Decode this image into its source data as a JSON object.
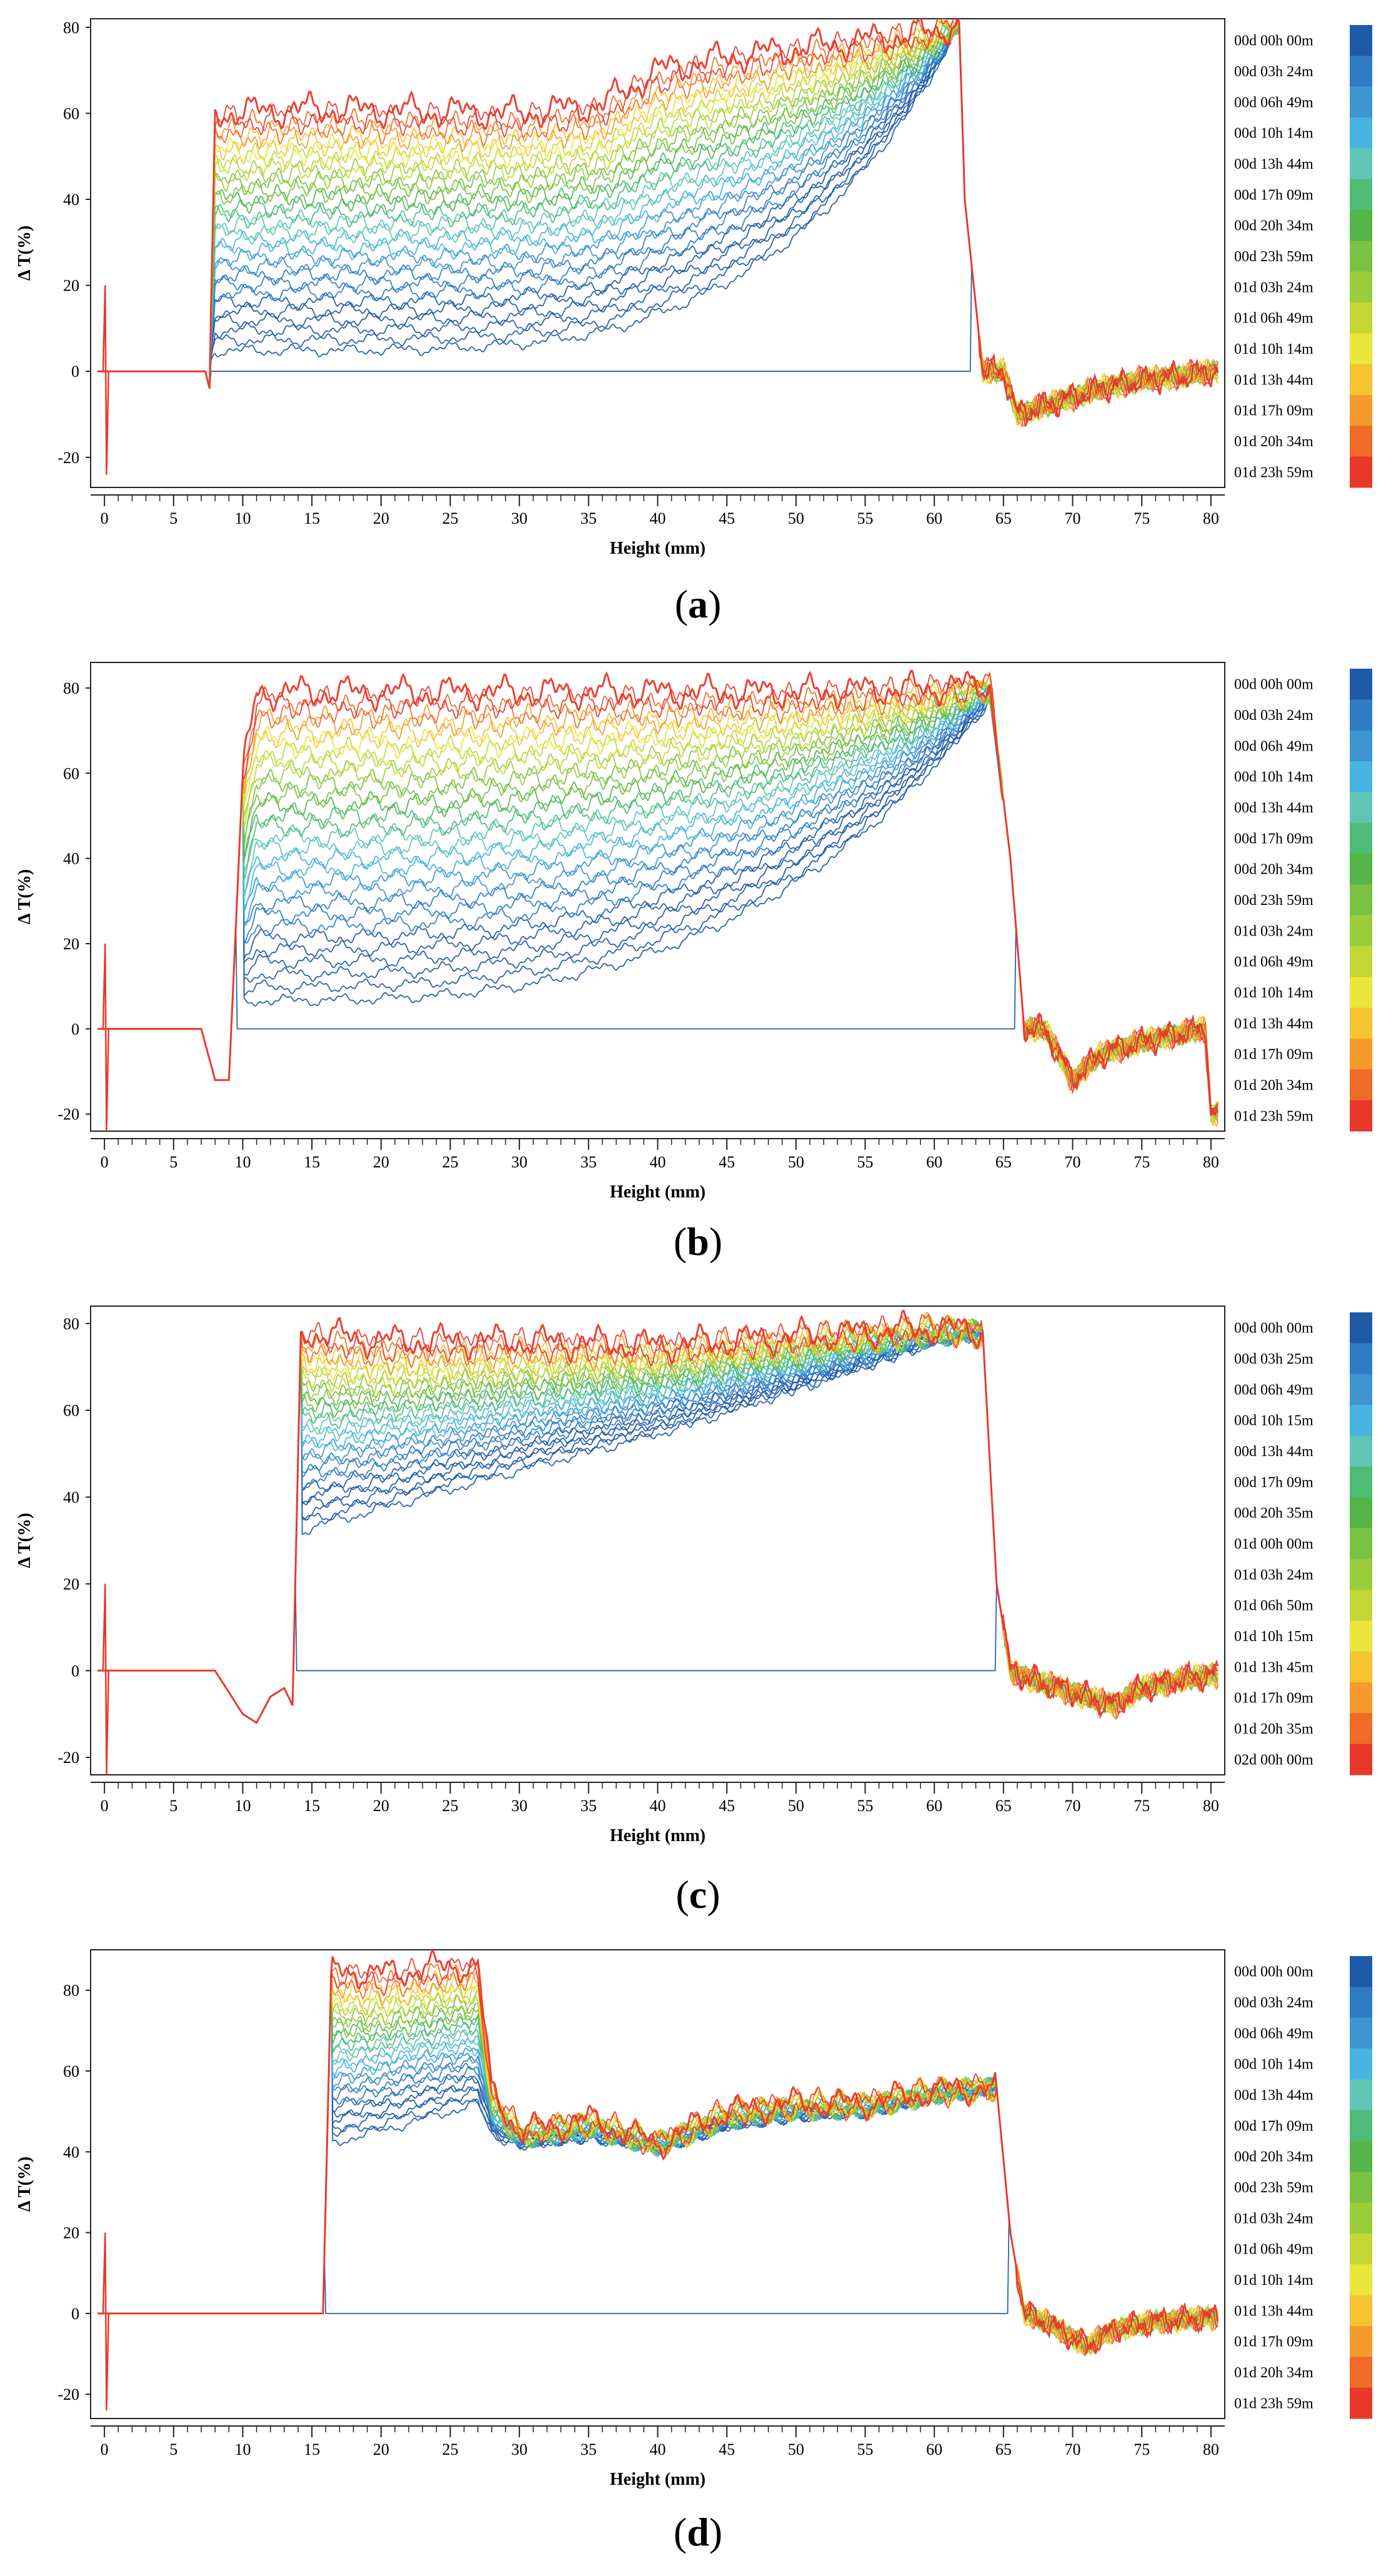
{
  "colors": [
    "#1f5aa8",
    "#2f7cc4",
    "#3d95d2",
    "#47b4e2",
    "#5fc6b6",
    "#4dbd78",
    "#55b548",
    "#7cc242",
    "#9acd3c",
    "#c3d835",
    "#eae63a",
    "#f4c430",
    "#f59a2c",
    "#f06a28",
    "#e8382a"
  ],
  "chart_data": [
    {
      "id": "a",
      "type": "line",
      "panel_label": "a",
      "ylabel": "Δ T(%)",
      "xlabel": "Height (mm)",
      "xlim": [
        -1,
        81
      ],
      "ylim": [
        -27,
        82
      ],
      "xticks": [
        0,
        5,
        10,
        15,
        20,
        25,
        30,
        35,
        40,
        45,
        50,
        55,
        60,
        65,
        70,
        75,
        80
      ],
      "yticks": [
        -20,
        0,
        20,
        40,
        60,
        80
      ],
      "legend": [
        "00d 00h 00m",
        "00d 03h 24m",
        "00d 06h 49m",
        "00d 10h 14m",
        "00d 13h 44m",
        "00d 17h 09m",
        "00d 20h 34m",
        "00d 23h 59m",
        "01d 03h 24m",
        "01d 06h 49m",
        "01d 10h 14m",
        "01d 13h 44m",
        "01d 17h 09m",
        "01d 20h 34m",
        "01d 23h 59m"
      ],
      "curves": 30,
      "profile": {
        "x": [
          -0.5,
          0,
          0.5,
          7.3,
          7.6,
          8,
          15,
          30,
          36,
          40,
          45,
          50,
          55,
          60,
          61.8,
          62.2,
          63.5,
          65,
          66,
          68,
          70,
          72,
          75,
          78,
          80
        ],
        "y": [
          0,
          0,
          0,
          0,
          -4,
          60,
          61,
          60,
          62,
          70,
          73,
          75,
          77,
          79,
          81,
          40,
          0,
          0,
          -10,
          -8,
          -6,
          -4,
          -2,
          -1,
          0
        ]
      },
      "base_rise": {
        "start": 7.6,
        "end": 61.8,
        "min": 2,
        "curve_power": 4
      }
    },
    {
      "id": "b",
      "type": "line",
      "panel_label": "b",
      "ylabel": "Δ T(%)",
      "xlabel": "Height (mm)",
      "xlim": [
        -1,
        81
      ],
      "ylim": [
        -24,
        86
      ],
      "xticks": [
        0,
        5,
        10,
        15,
        20,
        25,
        30,
        35,
        40,
        45,
        50,
        55,
        60,
        65,
        70,
        75,
        80
      ],
      "yticks": [
        -20,
        0,
        20,
        40,
        60,
        80
      ],
      "legend": [
        "00d 00h 00m",
        "00d 03h 24m",
        "00d 06h 49m",
        "00d 10h 14m",
        "00d 13h 44m",
        "00d 17h 09m",
        "00d 20h 34m",
        "00d 23h 59m",
        "01d 03h 24m",
        "01d 06h 49m",
        "01d 10h 14m",
        "01d 13h 44m",
        "01d 17h 09m",
        "01d 20h 34m",
        "01d 23h 59m"
      ],
      "curves": 30,
      "profile": {
        "x": [
          -0.5,
          0,
          0.5,
          7,
          8,
          9,
          10,
          11,
          20,
          30,
          40,
          50,
          60,
          64,
          65.5,
          66.5,
          68,
          70,
          72,
          75,
          78,
          79.6,
          80
        ],
        "y": [
          0,
          0,
          0,
          0,
          -12,
          -12,
          60,
          79,
          79,
          79,
          79,
          79,
          80,
          81,
          40,
          0,
          0,
          -12,
          -6,
          -3,
          -1,
          0,
          -20
        ]
      },
      "base_rise": {
        "start": 10,
        "end": 65,
        "min": 3,
        "curve_power": 3
      }
    },
    {
      "id": "c",
      "type": "line",
      "panel_label": "c",
      "ylabel": "Δ T(%)",
      "xlabel": "Height (mm)",
      "xlim": [
        -1,
        81
      ],
      "ylim": [
        -24,
        84
      ],
      "xticks": [
        0,
        5,
        10,
        15,
        20,
        25,
        30,
        35,
        40,
        45,
        50,
        55,
        60,
        65,
        70,
        75,
        80
      ],
      "yticks": [
        -20,
        0,
        20,
        40,
        60,
        80
      ],
      "legend": [
        "00d 00h 00m",
        "00d 03h 25m",
        "00d 06h 49m",
        "00d 10h 15m",
        "00d 13h 44m",
        "00d 17h 09m",
        "00d 20h 35m",
        "01d 00h 00m",
        "01d 03h 24m",
        "01d 06h 50m",
        "01d 10h 15m",
        "01d 13h 45m",
        "01d 17h 09m",
        "01d 20h 35m",
        "02d 00h 00m"
      ],
      "curves": 30,
      "profile": {
        "x": [
          -0.5,
          0,
          0.5,
          8,
          10,
          11,
          12,
          13,
          13.6,
          14.2,
          20,
          30,
          40,
          50,
          60,
          63.5,
          64.5,
          65.5,
          67,
          70,
          73,
          75,
          78,
          80
        ],
        "y": [
          0,
          0,
          0,
          0,
          -10,
          -12,
          -6,
          -4,
          -8,
          78,
          76,
          76,
          75,
          77,
          79,
          78,
          20,
          0,
          -2,
          -5,
          -8,
          -4,
          -2,
          -1
        ]
      },
      "base_rise": {
        "start": 14.2,
        "end": 63.5,
        "min": 30,
        "curve_power": 1
      }
    },
    {
      "id": "d",
      "type": "line",
      "panel_label": "d",
      "ylabel": "Δ T(%)",
      "xlabel": "Height (mm)",
      "xlim": [
        -1,
        81
      ],
      "ylim": [
        -26,
        90
      ],
      "xticks": [
        0,
        5,
        10,
        15,
        20,
        25,
        30,
        35,
        40,
        45,
        50,
        55,
        60,
        65,
        70,
        75,
        80
      ],
      "yticks": [
        -20,
        0,
        20,
        40,
        60,
        80
      ],
      "legend": [
        "00d 00h 00m",
        "00d 03h 24m",
        "00d 06h 49m",
        "00d 10h 14m",
        "00d 13h 44m",
        "00d 17h 09m",
        "00d 20h 34m",
        "00d 23h 59m",
        "01d 03h 24m",
        "01d 06h 49m",
        "01d 10h 14m",
        "01d 13h 44m",
        "01d 17h 09m",
        "01d 20h 34m",
        "01d 23h 59m"
      ],
      "curves": 30,
      "profile": {
        "x": [
          -0.5,
          0,
          0.5,
          15,
          15.8,
          16.4,
          20,
          25,
          27,
          28,
          30,
          35,
          40,
          45,
          50,
          55,
          60,
          64.5,
          65.5,
          66.5,
          68,
          71,
          73,
          76,
          80
        ],
        "y": [
          0,
          0,
          0,
          0,
          0,
          85,
          84,
          86,
          86,
          55,
          45,
          48,
          42,
          50,
          52,
          52,
          55,
          56,
          20,
          0,
          -2,
          -8,
          -4,
          -2,
          -1
        ]
      },
      "base_rise": {
        "start": 16.4,
        "end": 64.5,
        "min": 40,
        "curve_power": 1
      }
    }
  ]
}
